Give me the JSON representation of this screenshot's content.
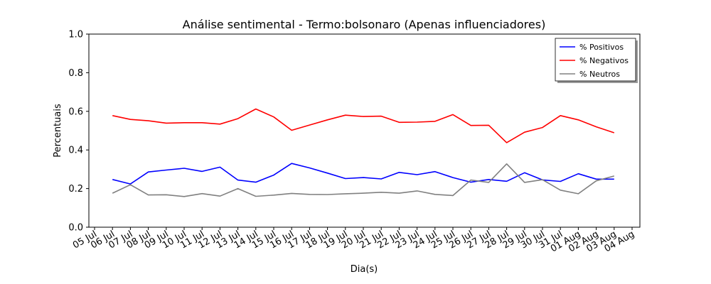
{
  "chart_data": {
    "type": "line",
    "title": "Análise sentimental - Termo:bolsonaro (Apenas influenciadores)",
    "xlabel": "Dia(s)",
    "ylabel": "Percentuais",
    "ylim": [
      0,
      1.0
    ],
    "yticks": [
      "0.0",
      "0.2",
      "0.4",
      "0.6",
      "0.8",
      "1.0"
    ],
    "x_ticks": [
      "05 Jul",
      "06 Jul",
      "07 Jul",
      "08 Jul",
      "09 Jul",
      "10 Jul",
      "11 Jul",
      "12 Jul",
      "13 Jul",
      "14 Jul",
      "15 Jul",
      "16 Jul",
      "17 Jul",
      "18 Jul",
      "19 Jul",
      "20 Jul",
      "21 Jul",
      "22 Jul",
      "23 Jul",
      "24 Jul",
      "25 Jul",
      "26 Jul",
      "27 Jul",
      "28 Jul",
      "29 Jul",
      "30 Jul",
      "31 Jul",
      "01 Aug",
      "02 Aug",
      "03 Aug",
      "04 Aug"
    ],
    "legend_position": "top-right",
    "grid": false,
    "series": [
      {
        "name": "% Positivos",
        "color": "#0000ff",
        "values": [
          0.247,
          0.224,
          0.286,
          0.296,
          0.305,
          0.289,
          0.311,
          0.244,
          0.233,
          0.27,
          0.33,
          0.307,
          0.28,
          0.252,
          0.257,
          0.25,
          0.284,
          0.272,
          0.288,
          0.257,
          0.233,
          0.247,
          0.238,
          0.282,
          0.245,
          0.237,
          0.277,
          0.249,
          0.249
        ]
      },
      {
        "name": "% Negativos",
        "color": "#ff0000",
        "values": [
          0.578,
          0.558,
          0.551,
          0.539,
          0.541,
          0.541,
          0.534,
          0.562,
          0.612,
          0.571,
          0.502,
          0.529,
          0.556,
          0.58,
          0.573,
          0.575,
          0.543,
          0.544,
          0.548,
          0.583,
          0.527,
          0.528,
          0.438,
          0.492,
          0.516,
          0.578,
          0.556,
          0.52,
          0.489
        ]
      },
      {
        "name": "% Neutros",
        "color": "#808080",
        "values": [
          0.176,
          0.22,
          0.167,
          0.168,
          0.159,
          0.174,
          0.161,
          0.2,
          0.16,
          0.166,
          0.175,
          0.17,
          0.169,
          0.173,
          0.176,
          0.181,
          0.176,
          0.188,
          0.17,
          0.164,
          0.244,
          0.232,
          0.328,
          0.232,
          0.246,
          0.192,
          0.173,
          0.24,
          0.265
        ]
      }
    ]
  }
}
